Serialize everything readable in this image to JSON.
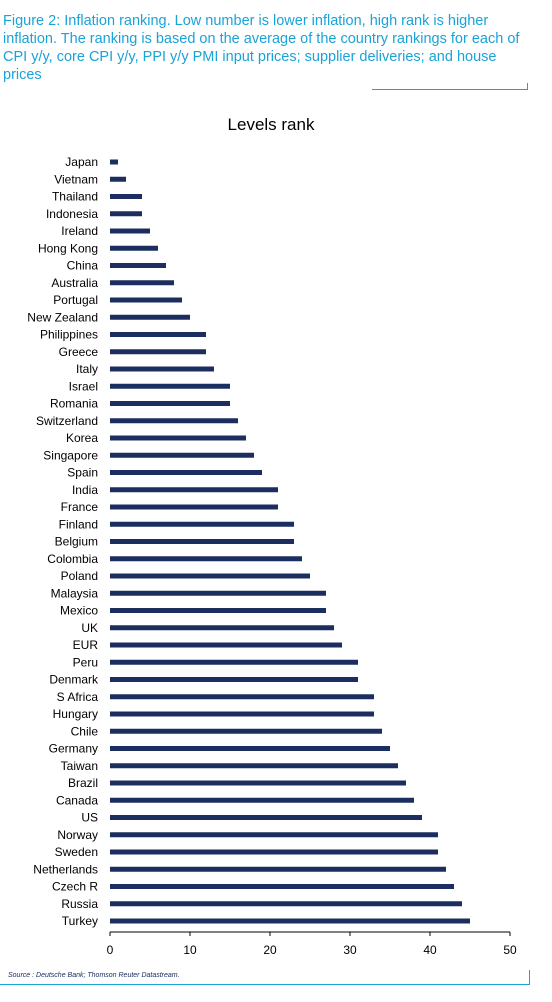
{
  "caption": "Figure 2: Inflation ranking. Low number is lower inflation, high rank is higher inflation. The ranking is based on the average of the country rankings for each of CPI y/y, core CPI y/y, PPI y/y PMI input prices; supplier deliveries; and house prices",
  "source": "Source : Deutsche Bank; Thomson Reuter Datastream.",
  "colors": {
    "bar": "#1c2e60",
    "caption": "#1aa3d8"
  },
  "chart_data": {
    "type": "bar",
    "orientation": "horizontal",
    "title": "Levels rank",
    "xlabel": "",
    "ylabel": "",
    "xlim": [
      0,
      50
    ],
    "x_ticks": [
      "0",
      "10",
      "20",
      "30",
      "40",
      "50"
    ],
    "grid": false,
    "legend": "none",
    "categories": [
      "Japan",
      "Vietnam",
      "Thailand",
      "Indonesia",
      "Ireland",
      "Hong Kong",
      "China",
      "Australia",
      "Portugal",
      "New Zealand",
      "Philippines",
      "Greece",
      "Italy",
      "Israel",
      "Romania",
      "Switzerland",
      "Korea",
      "Singapore",
      "Spain",
      "India",
      "France",
      "Finland",
      "Belgium",
      "Colombia",
      "Poland",
      "Malaysia",
      "Mexico",
      "UK",
      "EUR",
      "Peru",
      "Denmark",
      "S Africa",
      "Hungary",
      "Chile",
      "Germany",
      "Taiwan",
      "Brazil",
      "Canada",
      "US",
      "Norway",
      "Sweden",
      "Netherlands",
      "Czech R",
      "Russia",
      "Turkey"
    ],
    "values": [
      1,
      2,
      4,
      4,
      5,
      6,
      7,
      8,
      9,
      10,
      12,
      12,
      13,
      15,
      15,
      16,
      17,
      18,
      19,
      21,
      21,
      23,
      23,
      24,
      25,
      27,
      27,
      28,
      29,
      31,
      31,
      33,
      33,
      34,
      35,
      36,
      37,
      38,
      39,
      41,
      41,
      42,
      43,
      44,
      45
    ]
  }
}
